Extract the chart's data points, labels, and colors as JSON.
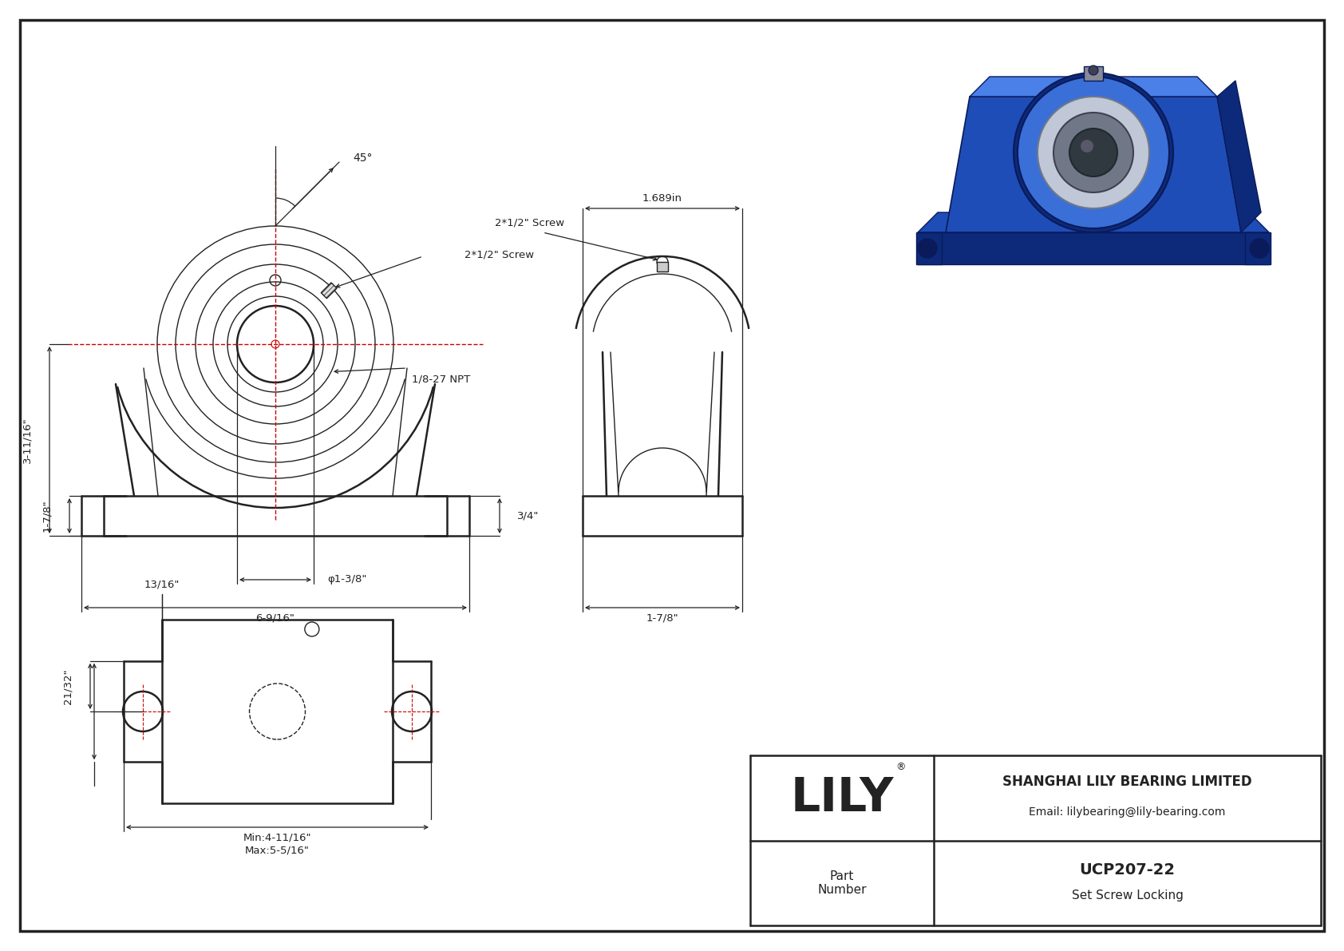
{
  "bg_color": "#ffffff",
  "line_color": "#222222",
  "dim_color": "#222222",
  "red_line_color": "#cc0000",
  "title_company": "SHANGHAI LILY BEARING LIMITED",
  "title_email": "Email: lilybearing@lily-bearing.com",
  "title_part_label": "Part\nNumber",
  "title_part_number": "UCP207-22",
  "title_part_type": "Set Screw Locking",
  "title_logo": "LILY",
  "dim_45": "45°",
  "dim_2_1_2_screw": "2*1/2\" Screw",
  "dim_1_8_27_npt": "1/8-27 NPT",
  "dim_3_11_16": "3-11/16\"",
  "dim_1_7_8_front": "1-7/8\"",
  "dim_phi_1_3_8": "φ1-3/8\"",
  "dim_6_9_16": "6-9/16\"",
  "dim_3_4": "3/4\"",
  "dim_1_689in": "1.689in",
  "dim_1_7_8_side": "1-7/8\"",
  "dim_13_16": "13/16\"",
  "dim_21_32": "21/32\"",
  "dim_min": "Min:4-11/16\"",
  "dim_max": "Max:5-5/16\""
}
